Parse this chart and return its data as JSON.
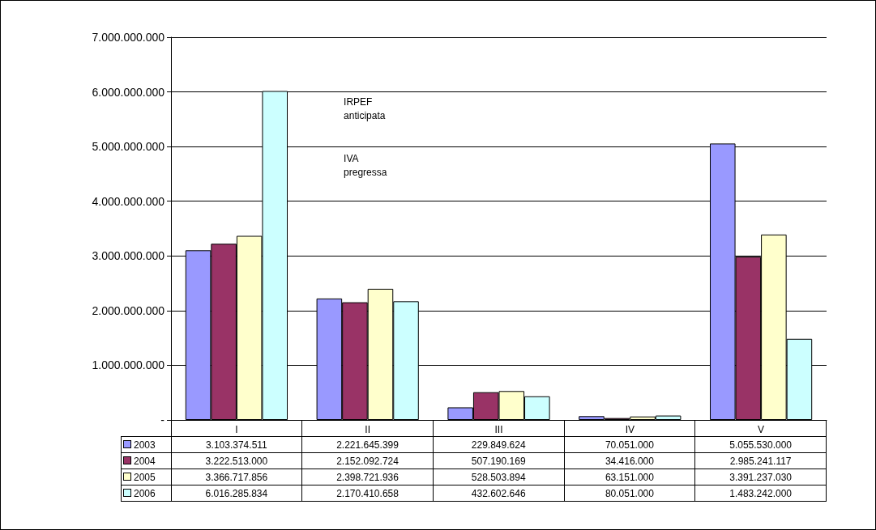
{
  "chart_data": {
    "type": "bar",
    "categories": [
      "I",
      "II",
      "III",
      "IV",
      "V"
    ],
    "series": [
      {
        "name": "2003",
        "color": "#9999ff",
        "values": [
          3103374511,
          2221645399,
          229849624,
          70051000,
          5055530000
        ],
        "value_labels": [
          "3.103.374.511",
          "2.221.645.399",
          "229.849.624",
          "70.051.000",
          "5.055.530.000"
        ]
      },
      {
        "name": "2004",
        "color": "#993366",
        "values": [
          3222513000,
          2152092724,
          507190169,
          34416000,
          2985241117
        ],
        "value_labels": [
          "3.222.513.000",
          "2.152.092.724",
          "507.190.169",
          "34.416.000",
          "2.985.241.117"
        ]
      },
      {
        "name": "2005",
        "color": "#ffffcc",
        "values": [
          3366717856,
          2398721936,
          528503894,
          63151000,
          3391237030
        ],
        "value_labels": [
          "3.366.717.856",
          "2.398.721.936",
          "528.503.894",
          "63.151.000",
          "3.391.237.030"
        ]
      },
      {
        "name": "2006",
        "color": "#ccffff",
        "values": [
          6016285834,
          2170410658,
          432602646,
          80051000,
          1483242000
        ],
        "value_labels": [
          "6.016.285.834",
          "2.170.410.658",
          "432.602.646",
          "80.051.000",
          "1.483.242.000"
        ]
      }
    ],
    "ylim": [
      0,
      7000000000
    ],
    "yticks": [
      {
        "value": 0,
        "label": "-"
      },
      {
        "value": 1000000000,
        "label": "1.000.000.000"
      },
      {
        "value": 2000000000,
        "label": "2.000.000.000"
      },
      {
        "value": 3000000000,
        "label": "3.000.000.000"
      },
      {
        "value": 4000000000,
        "label": "4.000.000.000"
      },
      {
        "value": 5000000000,
        "label": "5.000.000.000"
      },
      {
        "value": 6000000000,
        "label": "6.000.000.000"
      },
      {
        "value": 7000000000,
        "label": "7.000.000.000"
      }
    ],
    "annotations": [
      "IRPEF anticipata",
      "IVA pregressa"
    ],
    "grid": "y",
    "legend": "bottom left"
  }
}
